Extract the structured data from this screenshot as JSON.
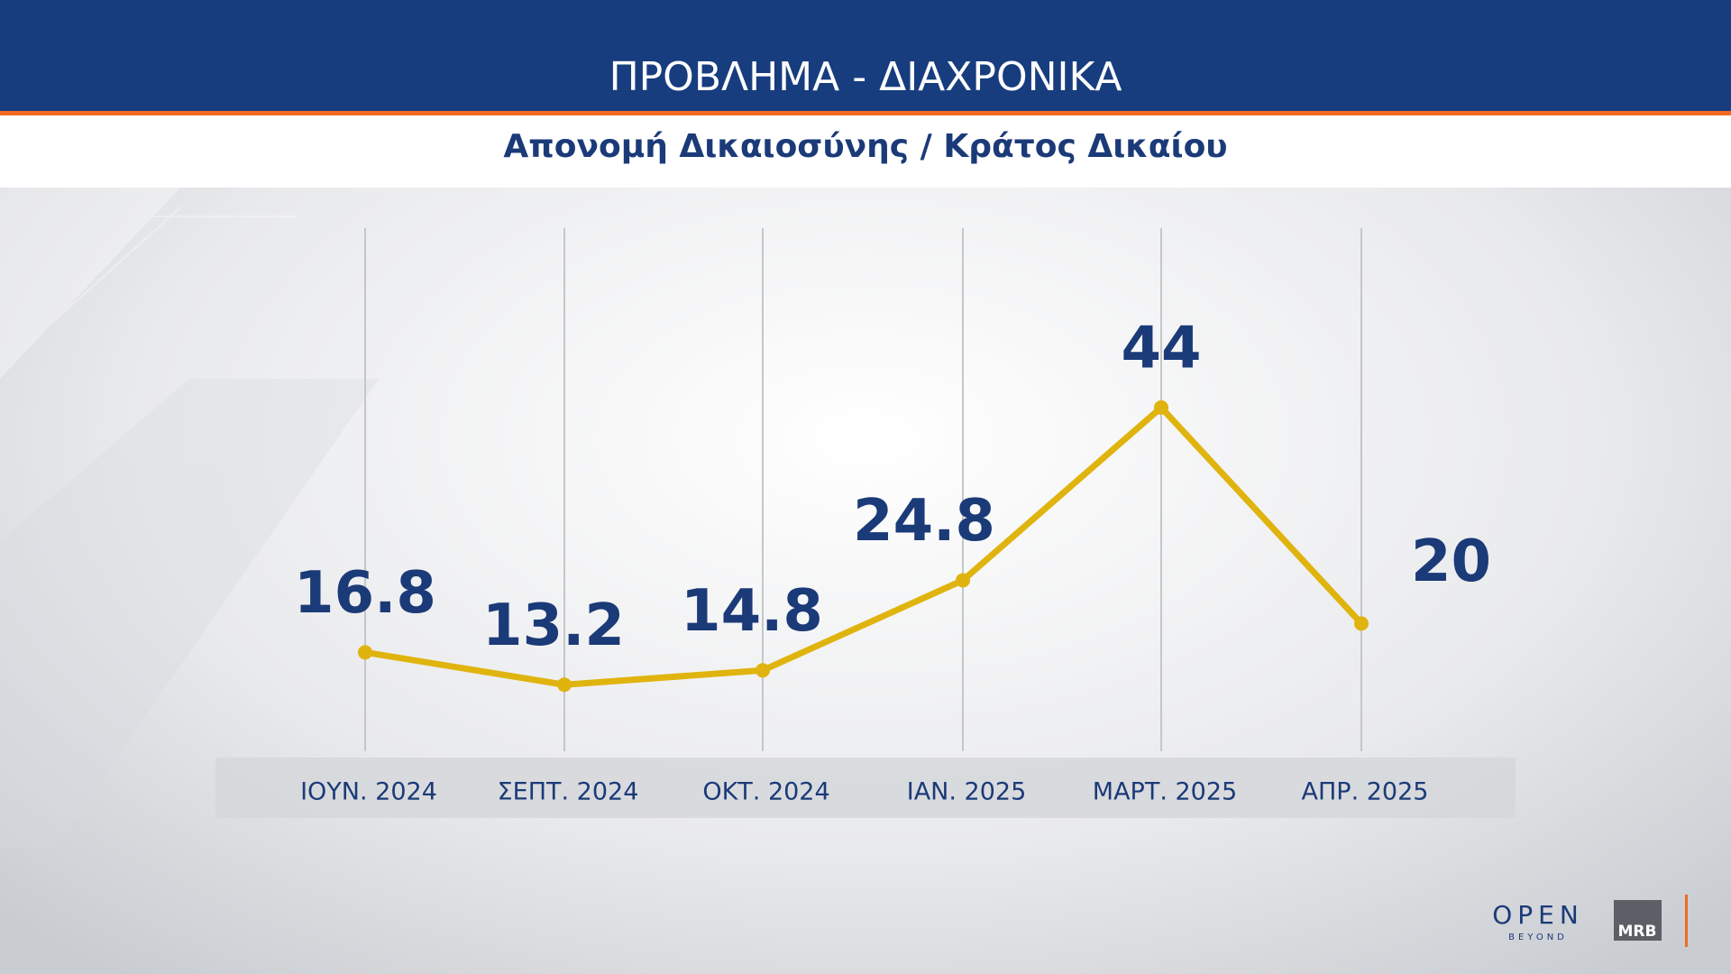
{
  "chart_data": {
    "type": "line",
    "title": "ΠΡΟΒΛΗΜΑ - ΔΙΑΧΡΟΝΙΚΑ",
    "subtitle": "Απονομή Δικαιοσύνης / Κράτος Δικαίου",
    "categories": [
      "ΙΟΥΝ. 2024",
      "ΣΕΠΤ. 2024",
      "ΟΚΤ. 2024",
      "ΙΑΝ. 2025",
      "ΜΑΡΤ. 2025",
      "ΑΠΡ. 2025"
    ],
    "values": [
      16.8,
      13.2,
      14.8,
      24.8,
      44,
      20
    ],
    "color": "#e0b40e",
    "label_color": "#1b3a78"
  },
  "branding": {
    "channel": "OPEN",
    "channel_tagline": "BEYOND",
    "pollster": "MRB"
  }
}
